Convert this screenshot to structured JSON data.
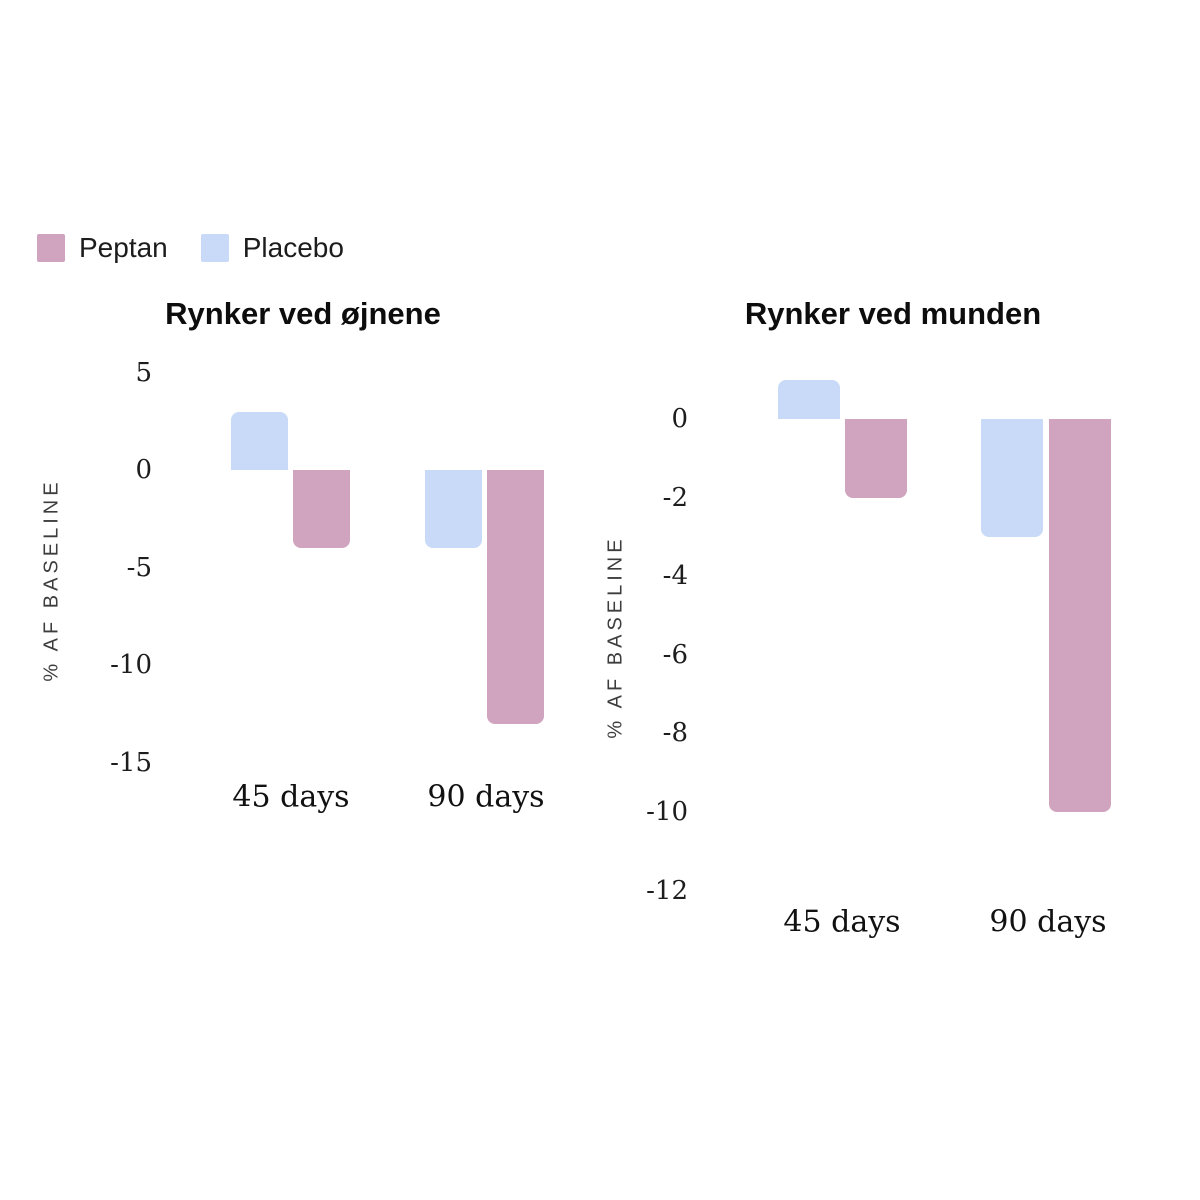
{
  "page": {
    "background": "#ffffff"
  },
  "legend": {
    "items": [
      {
        "label": "Peptan",
        "color": "#d0a4bf"
      },
      {
        "label": "Placebo",
        "color": "#c8daf7"
      }
    ]
  },
  "colors": {
    "peptan": "#d0a4bf",
    "placebo": "#c8daf7",
    "text": "#1c1c1c"
  },
  "chart_data": [
    {
      "id": "eyes",
      "type": "bar",
      "title": "Rynker ved øjnene",
      "ylabel": "% AF BASELINE",
      "xlabel": "",
      "categories": [
        "45 days",
        "90 days"
      ],
      "series": [
        {
          "name": "Placebo",
          "color": "#c8daf7",
          "values": [
            3,
            -4
          ]
        },
        {
          "name": "Peptan",
          "color": "#d0a4bf",
          "values": [
            -4,
            -13
          ]
        }
      ],
      "yticks": [
        5,
        0,
        -5,
        -10,
        -15
      ],
      "ylim": [
        -15,
        5
      ],
      "grid": false,
      "legend_position": "top-left"
    },
    {
      "id": "mouth",
      "type": "bar",
      "title": "Rynker ved munden",
      "ylabel": "% AF BASELINE",
      "xlabel": "",
      "categories": [
        "45 days",
        "90 days"
      ],
      "series": [
        {
          "name": "Placebo",
          "color": "#c8daf7",
          "values": [
            1,
            -3
          ]
        },
        {
          "name": "Peptan",
          "color": "#d0a4bf",
          "values": [
            -2,
            -10
          ]
        }
      ],
      "yticks": [
        0,
        -2,
        -4,
        -6,
        -8,
        -10,
        -12
      ],
      "ylim": [
        -12,
        1
      ],
      "grid": false,
      "legend_position": "top-left"
    }
  ]
}
